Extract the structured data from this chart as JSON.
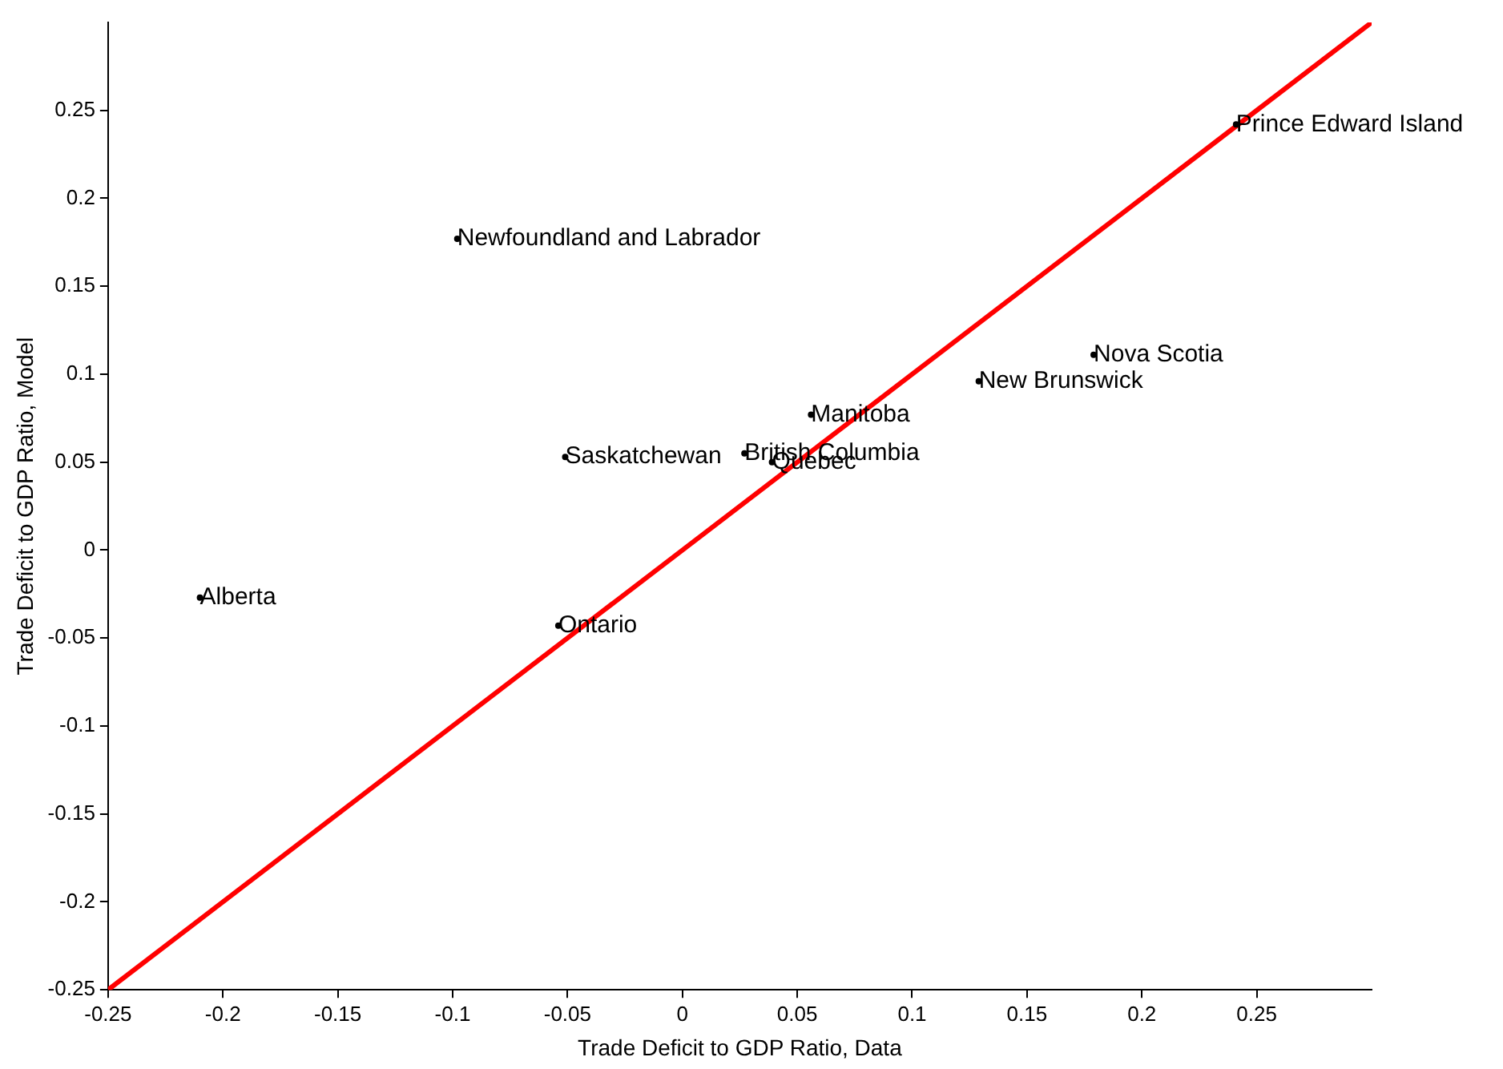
{
  "chart_data": {
    "type": "scatter",
    "xlabel": "Trade Deficit to GDP Ratio, Data",
    "ylabel": "Trade Deficit to GDP Ratio, Model",
    "series": [
      {
        "type": "scatter",
        "color": "#000000",
        "marker": "circle",
        "x": [
          0.241,
          -0.098,
          0.179,
          0.129,
          0.056,
          -0.051,
          0.027,
          0.039,
          -0.21,
          -0.054
        ],
        "values": [
          0.242,
          0.177,
          0.111,
          0.096,
          0.077,
          0.053,
          0.055,
          0.05,
          -0.027,
          -0.043
        ],
        "value_labels": [
          "Prince Edward Island",
          "Newfoundland and Labrador",
          "Nova Scotia",
          "New Brunswick",
          "Manitoba",
          "Saskatchewan",
          "British Columbia",
          "Quebec",
          "Alberta",
          "Ontario"
        ]
      },
      {
        "type": "line",
        "color": "#ff0000",
        "x": [
          -0.25,
          0.3
        ],
        "values": [
          -0.25,
          0.3
        ]
      }
    ],
    "xlim": [
      -0.25,
      0.3
    ],
    "xticks": [
      -0.25,
      -0.2,
      -0.15,
      -0.1,
      -0.05,
      0,
      0.05,
      0.1,
      0.15,
      0.2,
      0.25
    ],
    "ylim": [
      -0.25,
      0.3
    ],
    "yticks": [
      -0.25,
      -0.2,
      -0.15,
      -0.1,
      -0.05,
      0,
      0.05,
      0.1,
      0.15,
      0.2,
      0.25
    ],
    "grid": false,
    "legend": false,
    "marker": "none",
    "line_style": "solid"
  }
}
